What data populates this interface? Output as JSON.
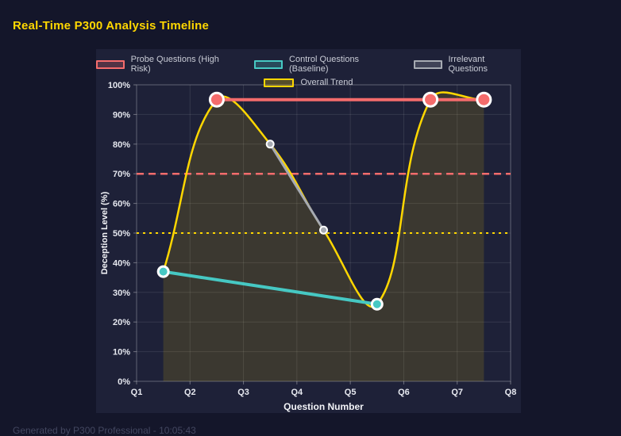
{
  "header": {
    "title": "Real-Time P300 Analysis Timeline"
  },
  "footer": {
    "text": "Generated by P300 Professional - 10:05:43"
  },
  "colors": {
    "page_background": "#14162a",
    "card_background": "#1e2138",
    "title": "#ffd700",
    "probe": "#f56c6c",
    "control": "#46c8c3",
    "irrelevant": "#a6aab2",
    "trend": "#ffd700",
    "grid": "rgba(255,255,255,0.10)",
    "plot_border": "rgba(255,255,255,0.22)",
    "tick_text": "#e6e8ef",
    "legend_text": "#c9ccd6",
    "point_border": "#ffffff"
  },
  "chart_data": {
    "type": "line",
    "title": "Real-Time P300 Analysis Timeline",
    "xlabel": "Question Number",
    "ylabel": "Deception Level (%)",
    "x_tick_labels": [
      "Q1",
      "Q2",
      "Q3",
      "Q4",
      "Q5",
      "Q6",
      "Q7",
      "Q8"
    ],
    "x_range": [
      1,
      8
    ],
    "y_range": [
      0,
      100
    ],
    "y_tick_step": 10,
    "y_tick_suffix": "%",
    "grid": true,
    "legend_position": "top",
    "legend_rows": [
      [
        0,
        1,
        2
      ],
      [
        3
      ]
    ],
    "series": [
      {
        "name": "Probe Questions (High Risk)",
        "color": "#f56c6c",
        "points": [
          [
            2.5,
            95
          ],
          [
            6.5,
            95
          ],
          [
            7.5,
            95
          ]
        ],
        "line_width": 4,
        "point_radius": 8.5,
        "point_border_width": 3,
        "smooth": false
      },
      {
        "name": "Control Questions (Baseline)",
        "color": "#46c8c3",
        "points": [
          [
            1.5,
            37
          ],
          [
            5.5,
            26
          ]
        ],
        "line_width": 4,
        "point_radius": 6.5,
        "point_border_width": 3,
        "smooth": false
      },
      {
        "name": "Irrelevant Questions",
        "color": "#a6aab2",
        "points": [
          [
            3.5,
            80
          ],
          [
            4.5,
            51
          ]
        ],
        "line_width": 3,
        "point_radius": 4.5,
        "point_border_width": 2,
        "smooth": false
      },
      {
        "name": "Overall Trend",
        "color": "#ffd700",
        "points": [
          [
            1.5,
            37
          ],
          [
            2.5,
            95
          ],
          [
            3.5,
            80
          ],
          [
            4.5,
            51
          ],
          [
            5.5,
            26
          ],
          [
            6.5,
            95
          ],
          [
            7.5,
            95
          ]
        ],
        "line_width": 2.5,
        "point_radius": 0,
        "point_border_width": 0,
        "smooth": true,
        "tension": 0.4,
        "fill": true,
        "fill_color": "rgba(255,215,0,0.13)"
      }
    ],
    "threshold_lines": [
      {
        "y": 70,
        "color": "#f56c6c",
        "style": "dashed",
        "width": 2.5
      },
      {
        "y": 50,
        "color": "#ffd700",
        "style": "dotted",
        "width": 2
      }
    ]
  }
}
